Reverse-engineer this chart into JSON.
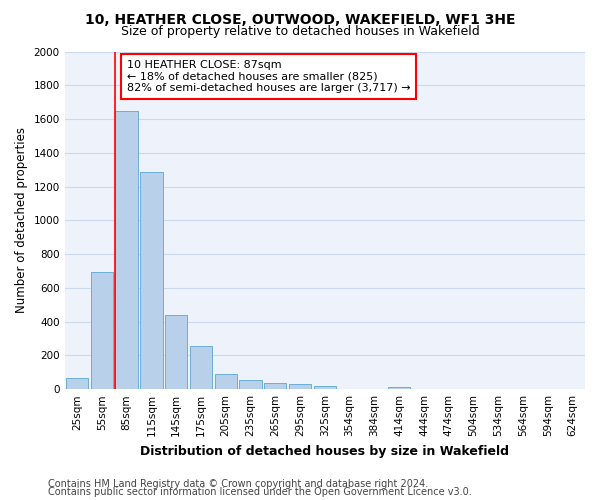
{
  "title1": "10, HEATHER CLOSE, OUTWOOD, WAKEFIELD, WF1 3HE",
  "title2": "Size of property relative to detached houses in Wakefield",
  "xlabel": "Distribution of detached houses by size in Wakefield",
  "ylabel": "Number of detached properties",
  "bin_labels": [
    "25sqm",
    "55sqm",
    "85sqm",
    "115sqm",
    "145sqm",
    "175sqm",
    "205sqm",
    "235sqm",
    "265sqm",
    "295sqm",
    "325sqm",
    "354sqm",
    "384sqm",
    "414sqm",
    "444sqm",
    "474sqm",
    "504sqm",
    "534sqm",
    "564sqm",
    "594sqm",
    "624sqm"
  ],
  "bar_values": [
    65,
    695,
    1645,
    1285,
    440,
    255,
    88,
    52,
    38,
    28,
    18,
    0,
    0,
    15,
    0,
    0,
    0,
    0,
    0,
    0,
    0
  ],
  "bar_color": "#b8d0ea",
  "bar_edge_color": "#6aaed6",
  "red_line_bin": 2,
  "annotation_text": "10 HEATHER CLOSE: 87sqm\n← 18% of detached houses are smaller (825)\n82% of semi-detached houses are larger (3,717) →",
  "annotation_box_color": "white",
  "annotation_edge_color": "red",
  "ylim": [
    0,
    2000
  ],
  "yticks": [
    0,
    200,
    400,
    600,
    800,
    1000,
    1200,
    1400,
    1600,
    1800,
    2000
  ],
  "footer1": "Contains HM Land Registry data © Crown copyright and database right 2024.",
  "footer2": "Contains public sector information licensed under the Open Government Licence v3.0.",
  "title1_fontsize": 10,
  "title2_fontsize": 9,
  "xlabel_fontsize": 9,
  "ylabel_fontsize": 8.5,
  "tick_fontsize": 7.5,
  "annotation_fontsize": 8,
  "footer_fontsize": 7,
  "grid_color": "#ccd8ee",
  "background_color": "#eef2fb"
}
